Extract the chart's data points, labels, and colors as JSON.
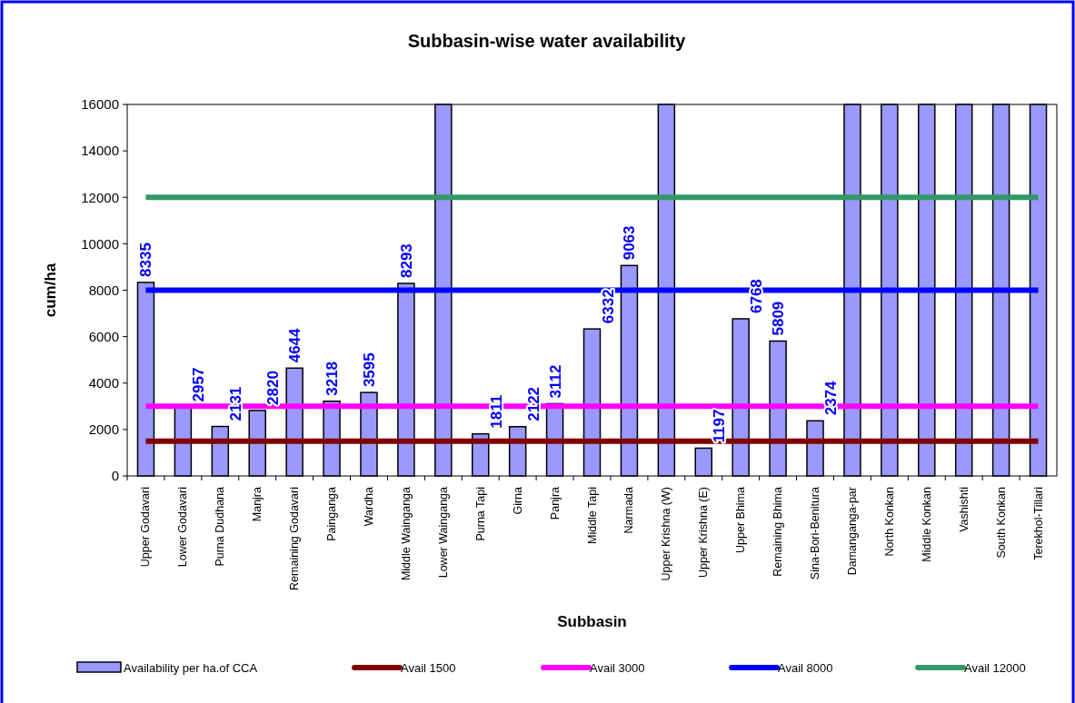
{
  "chart_data": {
    "type": "bar",
    "title": "Subbasin-wise water availability",
    "xlabel": "Subbasin",
    "ylabel": "cum/ha",
    "categories": [
      "Upper Godavari",
      "Lower Godavari",
      "Purna Dudhana",
      "Manjra",
      "Remaining Godavari",
      "Painganga",
      "Wardha",
      "Middle Wainganga",
      "Lower Wainganga",
      "Purna Tapi",
      "Girna",
      "Panjra",
      "Middle Tapi",
      "Narmada",
      "Upper Krishna (W)",
      "Upper Krishna (E)",
      "Upper Bhima",
      "Remaining Bhima",
      "Sina-Bori-Benitura",
      "Damanganga-par",
      "North Konkan",
      "Middle Konkan",
      "Vashishti",
      "South Konkan",
      "Terekhol-Tillari"
    ],
    "series": [
      {
        "name": "Availability per ha.of CCA",
        "color": "#9999ff",
        "values": [
          8335,
          2957,
          2131,
          2820,
          4644,
          3218,
          3595,
          8293,
          16000,
          1811,
          2122,
          3112,
          6332,
          9063,
          16000,
          1197,
          6768,
          5809,
          2374,
          16000,
          16000,
          16000,
          16000,
          16000,
          16000
        ],
        "value_labels": [
          "8335",
          "2957",
          "2131",
          "2820",
          "4644",
          "3218",
          "3595",
          "8293",
          null,
          "1811",
          "2122",
          "3112",
          "6332",
          "9063",
          null,
          "1197",
          "6768",
          "5809",
          "2374",
          null,
          null,
          null,
          null,
          null,
          null
        ]
      },
      {
        "name": "Avail 1500",
        "type": "line",
        "color": "#800000",
        "values": [
          1500,
          1500,
          1500,
          1500,
          1500,
          1500,
          1500,
          1500,
          1500,
          1500,
          1500,
          1500,
          1500,
          1500,
          1500,
          1500,
          1500,
          1500,
          1500,
          1500,
          1500,
          1500,
          1500,
          1500,
          1500
        ]
      },
      {
        "name": "Avail 3000",
        "type": "line",
        "color": "#ff00ff",
        "values": [
          3000,
          3000,
          3000,
          3000,
          3000,
          3000,
          3000,
          3000,
          3000,
          3000,
          3000,
          3000,
          3000,
          3000,
          3000,
          3000,
          3000,
          3000,
          3000,
          3000,
          3000,
          3000,
          3000,
          3000,
          3000
        ]
      },
      {
        "name": "Avail 8000",
        "type": "line",
        "color": "#0000ff",
        "values": [
          8000,
          8000,
          8000,
          8000,
          8000,
          8000,
          8000,
          8000,
          8000,
          8000,
          8000,
          8000,
          8000,
          8000,
          8000,
          8000,
          8000,
          8000,
          8000,
          8000,
          8000,
          8000,
          8000,
          8000,
          8000
        ]
      },
      {
        "name": "Avail 12000",
        "type": "line",
        "color": "#339966",
        "values": [
          12000,
          12000,
          12000,
          12000,
          12000,
          12000,
          12000,
          12000,
          12000,
          12000,
          12000,
          12000,
          12000,
          12000,
          12000,
          12000,
          12000,
          12000,
          12000,
          12000,
          12000,
          12000,
          12000,
          12000,
          12000
        ]
      }
    ],
    "ylim": [
      0,
      16000
    ],
    "yticks": [
      0,
      2000,
      4000,
      6000,
      8000,
      10000,
      12000,
      14000,
      16000
    ],
    "legend": "bottom",
    "marker": "none",
    "line_style": "solid"
  }
}
